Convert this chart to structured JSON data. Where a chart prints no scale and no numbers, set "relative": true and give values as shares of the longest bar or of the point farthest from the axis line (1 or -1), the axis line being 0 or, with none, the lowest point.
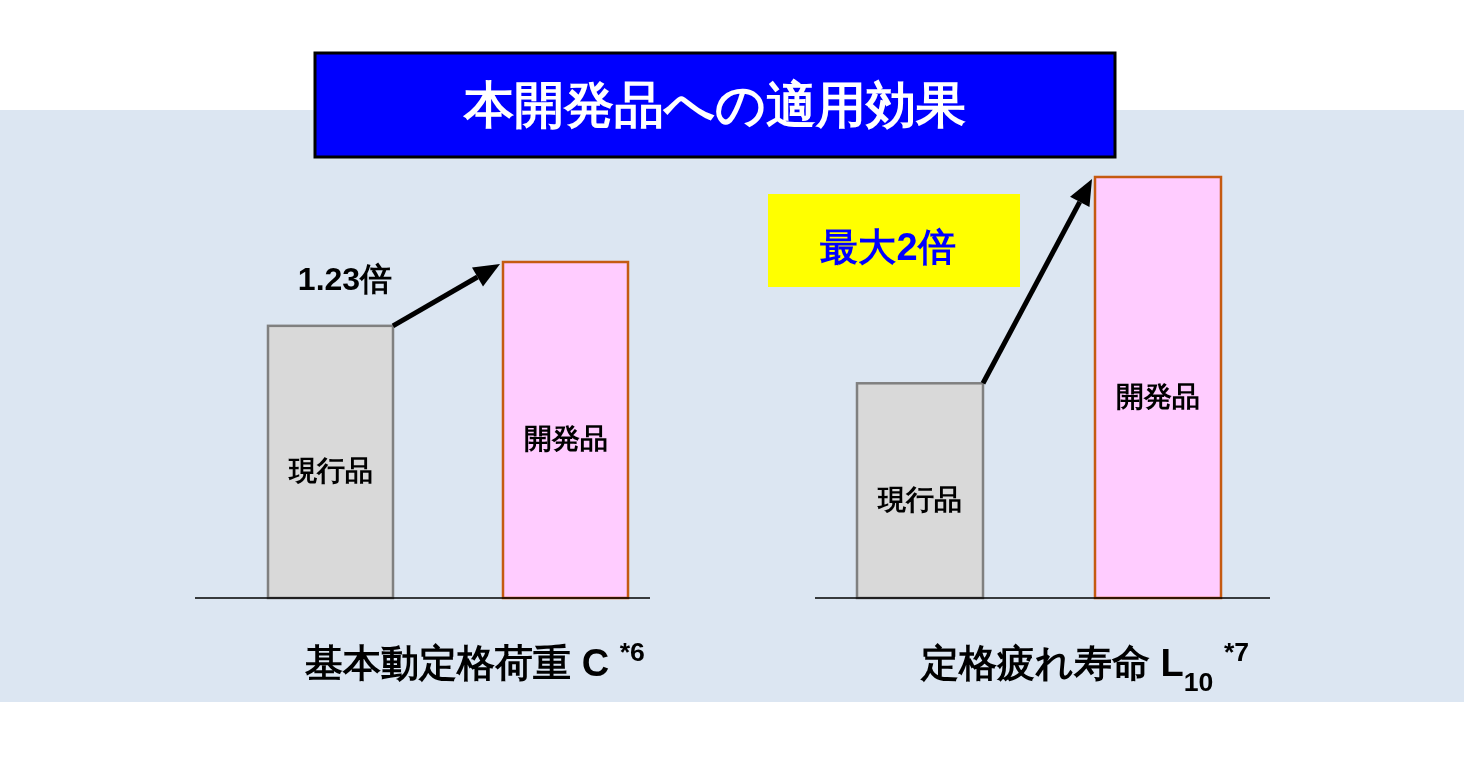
{
  "chart_data": [
    {
      "type": "bar",
      "title": "本開発品への適用効果",
      "relative": true,
      "categories": [
        "現行品",
        "開発品"
      ],
      "values": [
        0.81,
        1
      ],
      "colors": [
        "#d9d9d9",
        "#ffccff"
      ],
      "xlabel": "基本動定格荷重 C $^{*6}$",
      "annotations": [
        "1.23倍"
      ]
    },
    {
      "type": "bar",
      "relative": true,
      "categories": [
        "現行品",
        "開発品"
      ],
      "values": [
        0.51,
        1
      ],
      "colors": [
        "#d9d9d9",
        "#ffccff"
      ],
      "xlabel": "定格疲れ寿命 L$_{10}$ $^{*7}$",
      "annotations": [
        "最大2倍"
      ]
    }
  ]
}
